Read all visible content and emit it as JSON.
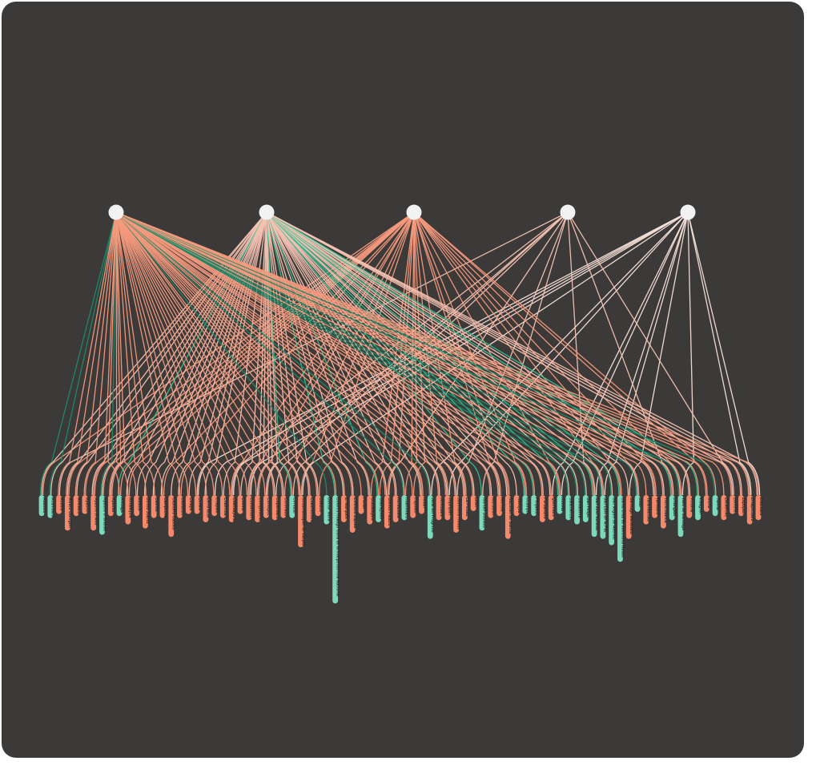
{
  "diagram": {
    "colors": {
      "background": "#3b3a39",
      "hub_node": "#f2f2f2",
      "orange_leaf": "#f4896b",
      "teal_leaf": "#7dd9bb",
      "link_orange": "#f79a7d",
      "link_light": "#f7c3b3",
      "link_pale": "#f8e2d9",
      "link_dark_teal": "#1c8a68",
      "link_teal": "#2fc294"
    },
    "hubs": [
      {
        "id": "h1",
        "color": "orange"
      },
      {
        "id": "h2",
        "color": "orange"
      },
      {
        "id": "h3",
        "color": "light"
      },
      {
        "id": "h4",
        "color": "light"
      },
      {
        "id": "h5",
        "color": "pale"
      }
    ],
    "leaves": [
      {
        "label": "Abasolo",
        "color": "teal"
      },
      {
        "label": "Acámbaro",
        "color": "teal"
      },
      {
        "label": "Aculco",
        "color": "orange"
      },
      {
        "label": "Álvaro Obregón",
        "color": "orange"
      },
      {
        "label": "Amealco",
        "color": "orange"
      },
      {
        "label": "Apaseo",
        "color": "orange"
      },
      {
        "label": "Apaseo el Alto",
        "color": "orange"
      },
      {
        "label": "Apaseo el Grande",
        "color": "teal"
      },
      {
        "label": "Apaxtla",
        "color": "orange"
      },
      {
        "label": "Arteaga",
        "color": "teal"
      },
      {
        "label": "Atitalaquia",
        "color": "orange"
      },
      {
        "label": "Atlixco",
        "color": "orange"
      },
      {
        "label": "Benito Juárez",
        "color": "orange"
      },
      {
        "label": "Calvillo",
        "color": "orange"
      },
      {
        "label": "Campeche",
        "color": "orange"
      },
      {
        "label": "Casimiro Castillo",
        "color": "orange"
      },
      {
        "label": "Castaños",
        "color": "orange"
      },
      {
        "label": "Celaya",
        "color": "orange"
      },
      {
        "label": "Centro",
        "color": "orange"
      },
      {
        "label": "Cerro Azul",
        "color": "orange"
      },
      {
        "label": "Chapala",
        "color": "orange"
      },
      {
        "label": "Chavinda",
        "color": "orange"
      },
      {
        "label": "Coahuayana",
        "color": "orange"
      },
      {
        "label": "Colima",
        "color": "orange"
      },
      {
        "label": "Comonfort",
        "color": "orange"
      },
      {
        "label": "Compostela",
        "color": "orange"
      },
      {
        "label": "Contepec",
        "color": "orange"
      },
      {
        "label": "Copándaro",
        "color": "orange"
      },
      {
        "label": "Coronado",
        "color": "orange"
      },
      {
        "label": "Cortazar",
        "color": "teal"
      },
      {
        "label": "Cosamaloapan de Carpio",
        "color": "orange"
      },
      {
        "label": "Cuauhtémoc",
        "color": "orange"
      },
      {
        "label": "Cuitzeo",
        "color": "orange"
      },
      {
        "label": "Doctor Mora",
        "color": "teal"
      },
      {
        "label": "Dolores Hidalgo Cuna de la Independencia Nacional",
        "color": "teal"
      },
      {
        "label": "El Marqués",
        "color": "orange"
      },
      {
        "label": "Emiliano Zapata",
        "color": "orange"
      },
      {
        "label": "Fortín",
        "color": "orange"
      },
      {
        "label": "Guadalajara",
        "color": "orange"
      },
      {
        "label": "Guanajuato",
        "color": "teal"
      },
      {
        "label": "Gómez Palacio",
        "color": "orange"
      },
      {
        "label": "Hermosillo",
        "color": "orange"
      },
      {
        "label": "Huanímaro",
        "color": "teal"
      },
      {
        "label": "Irapuato",
        "color": "orange"
      },
      {
        "label": "Ixtlán",
        "color": "orange"
      },
      {
        "label": "Jaral del Progreso",
        "color": "teal"
      },
      {
        "label": "Jerécuaro",
        "color": "orange"
      },
      {
        "label": "Jiquilpan",
        "color": "orange"
      },
      {
        "label": "Juventino Rosas",
        "color": "orange"
      },
      {
        "label": "La Piedad",
        "color": "orange"
      },
      {
        "label": "León",
        "color": "orange"
      },
      {
        "label": "Manuel Doblado",
        "color": "teal"
      },
      {
        "label": "Moroleón",
        "color": "orange"
      },
      {
        "label": "Morelia",
        "color": "orange"
      },
      {
        "label": "Nacozari de García",
        "color": "orange"
      },
      {
        "label": "Navojoa",
        "color": "orange"
      },
      {
        "label": "Ocampo",
        "color": "teal"
      },
      {
        "label": "Pénjamo",
        "color": "teal"
      },
      {
        "label": "Puruándiro",
        "color": "orange"
      },
      {
        "label": "Querétaro",
        "color": "orange"
      },
      {
        "label": "Romita",
        "color": "teal"
      },
      {
        "label": "Salamanca",
        "color": "teal"
      },
      {
        "label": "Salvatierra",
        "color": "teal"
      },
      {
        "label": "San Felipe",
        "color": "teal"
      },
      {
        "label": "San José Iturbide",
        "color": "teal"
      },
      {
        "label": "San Luis de la Paz",
        "color": "teal"
      },
      {
        "label": "San Miguel de Allende",
        "color": "teal"
      },
      {
        "label": "Santa Cruz de Juventino Rosas",
        "color": "teal"
      },
      {
        "label": "Santiago Maravatío",
        "color": "orange"
      },
      {
        "label": "Silao",
        "color": "teal"
      },
      {
        "label": "Tarandacuao",
        "color": "orange"
      },
      {
        "label": "Tarimoro",
        "color": "orange"
      },
      {
        "label": "Tierra Blanca",
        "color": "orange"
      },
      {
        "label": "Uriangato",
        "color": "teal"
      },
      {
        "label": "Valle de Santiago",
        "color": "teal"
      },
      {
        "label": "Victoria",
        "color": "orange"
      },
      {
        "label": "Villagrán",
        "color": "teal"
      },
      {
        "label": "Xichú",
        "color": "orange"
      },
      {
        "label": "Yuriria",
        "color": "teal"
      },
      {
        "label": "Zacatecas",
        "color": "orange"
      },
      {
        "label": "Zamora",
        "color": "orange"
      },
      {
        "label": "Zapopan",
        "color": "orange"
      },
      {
        "label": "Zinapécuaro",
        "color": "orange"
      },
      {
        "label": "Zitácuaro",
        "color": "orange"
      }
    ]
  }
}
